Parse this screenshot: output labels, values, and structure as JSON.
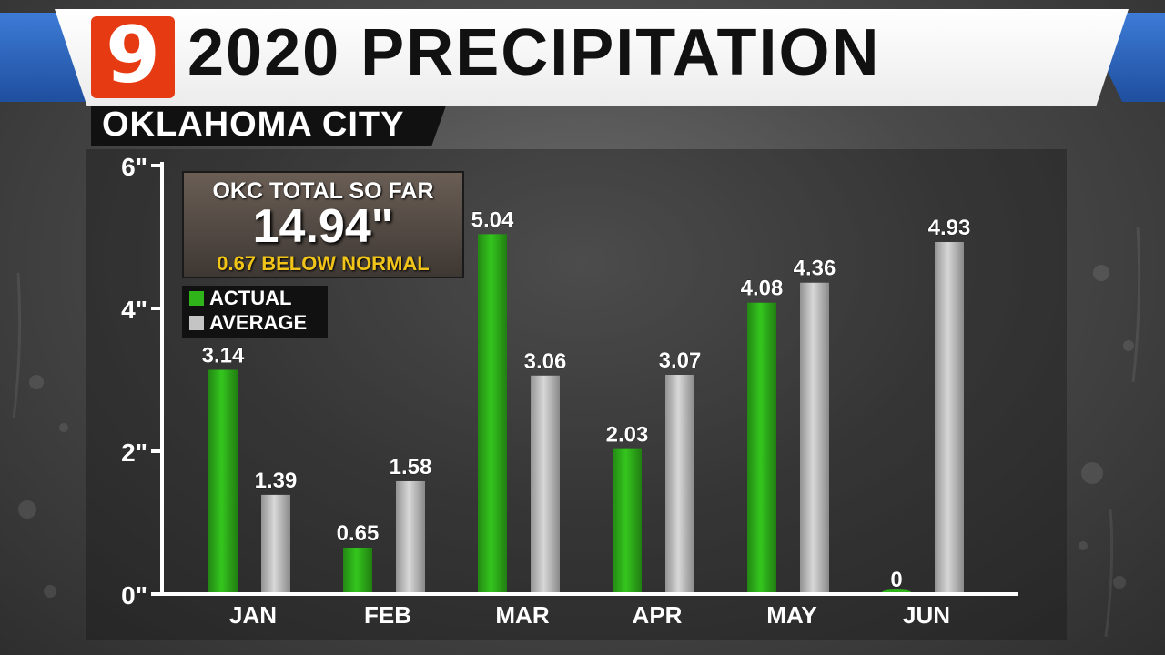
{
  "header": {
    "logo_text": "9",
    "title": "2020 PRECIPITATION",
    "subtitle": "OKLAHOMA CITY"
  },
  "info_box": {
    "label": "OKC TOTAL SO FAR",
    "value": "14.94\"",
    "note": "0.67 BELOW NORMAL"
  },
  "colors": {
    "actual": "#2fb41a",
    "average": "#c4c4c4",
    "note": "#f0c419",
    "logo": "#e63a12",
    "accent_blue": "#2f66c0"
  },
  "chart_data": {
    "type": "bar",
    "title": "2020 PRECIPITATION",
    "subtitle": "OKLAHOMA CITY",
    "categories": [
      "JAN",
      "FEB",
      "MAR",
      "APR",
      "MAY",
      "JUN"
    ],
    "series": [
      {
        "name": "ACTUAL",
        "values": [
          3.14,
          0.65,
          5.04,
          2.03,
          4.08,
          0
        ],
        "labels": [
          "3.14",
          "0.65",
          "5.04",
          "2.03",
          "4.08",
          "0"
        ]
      },
      {
        "name": "AVERAGE",
        "values": [
          1.39,
          1.58,
          3.06,
          3.07,
          4.36,
          4.93
        ],
        "labels": [
          "1.39",
          "1.58",
          "3.06",
          "3.07",
          "4.36",
          "4.93"
        ]
      }
    ],
    "ylim": [
      0,
      6
    ],
    "yticks": [
      0,
      2,
      4,
      6
    ],
    "ytick_labels": [
      "0\"",
      "2\"",
      "4\"",
      "6\""
    ],
    "legend": "top-left",
    "grid": false
  }
}
